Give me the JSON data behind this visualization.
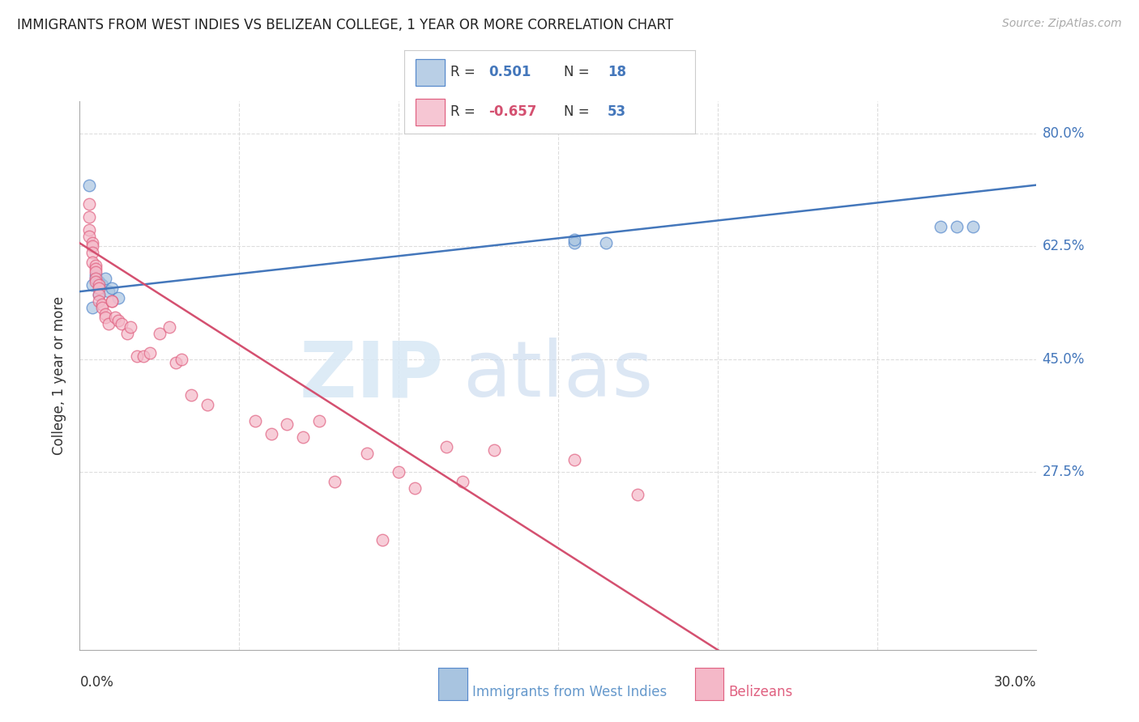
{
  "title": "IMMIGRANTS FROM WEST INDIES VS BELIZEAN COLLEGE, 1 YEAR OR MORE CORRELATION CHART",
  "source": "Source: ZipAtlas.com",
  "ylabel": "College, 1 year or more",
  "xlim": [
    0.0,
    0.3
  ],
  "ylim": [
    0.0,
    0.85
  ],
  "blue_color": "#A8C4E0",
  "pink_color": "#F4B8C8",
  "blue_edge_color": "#5588CC",
  "pink_edge_color": "#E06080",
  "blue_line_color": "#4477BB",
  "pink_line_color": "#D45070",
  "blue_points_x": [
    0.003,
    0.004,
    0.004,
    0.005,
    0.005,
    0.006,
    0.006,
    0.007,
    0.008,
    0.009,
    0.01,
    0.012,
    0.155,
    0.165,
    0.27,
    0.275,
    0.28,
    0.155
  ],
  "blue_points_y": [
    0.72,
    0.565,
    0.53,
    0.58,
    0.575,
    0.57,
    0.55,
    0.565,
    0.575,
    0.555,
    0.56,
    0.545,
    0.63,
    0.63,
    0.655,
    0.655,
    0.655,
    0.635
  ],
  "pink_points_x": [
    0.003,
    0.003,
    0.003,
    0.003,
    0.004,
    0.004,
    0.004,
    0.004,
    0.005,
    0.005,
    0.005,
    0.005,
    0.005,
    0.006,
    0.006,
    0.006,
    0.006,
    0.007,
    0.007,
    0.008,
    0.008,
    0.009,
    0.01,
    0.01,
    0.011,
    0.012,
    0.013,
    0.015,
    0.016,
    0.018,
    0.02,
    0.022,
    0.025,
    0.028,
    0.03,
    0.032,
    0.035,
    0.04,
    0.055,
    0.06,
    0.065,
    0.07,
    0.075,
    0.08,
    0.09,
    0.095,
    0.1,
    0.105,
    0.115,
    0.12,
    0.13,
    0.155,
    0.175
  ],
  "pink_points_y": [
    0.69,
    0.67,
    0.65,
    0.64,
    0.63,
    0.625,
    0.615,
    0.6,
    0.595,
    0.59,
    0.585,
    0.575,
    0.57,
    0.565,
    0.56,
    0.55,
    0.54,
    0.535,
    0.53,
    0.52,
    0.515,
    0.505,
    0.54,
    0.54,
    0.515,
    0.51,
    0.505,
    0.49,
    0.5,
    0.455,
    0.455,
    0.46,
    0.49,
    0.5,
    0.445,
    0.45,
    0.395,
    0.38,
    0.355,
    0.335,
    0.35,
    0.33,
    0.355,
    0.26,
    0.305,
    0.17,
    0.275,
    0.25,
    0.315,
    0.26,
    0.31,
    0.295,
    0.24
  ],
  "background_color": "#FFFFFF",
  "grid_color": "#DDDDDD",
  "ytick_positions": [
    0.275,
    0.45,
    0.625,
    0.8
  ],
  "ytick_labels": [
    "27.5%",
    "45.0%",
    "62.5%",
    "80.0%"
  ],
  "xtick_positions": [
    0.0,
    0.05,
    0.1,
    0.15,
    0.2,
    0.25,
    0.3
  ]
}
